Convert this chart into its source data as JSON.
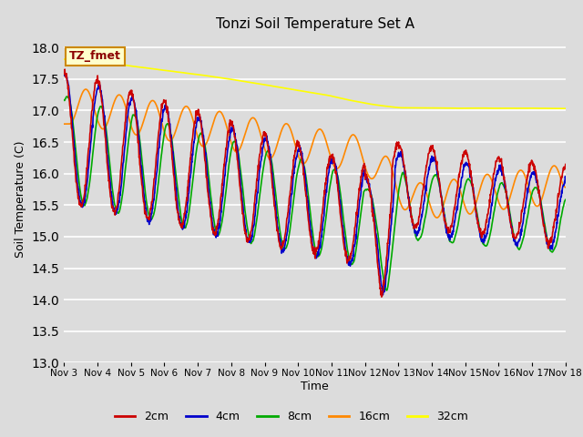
{
  "title": "Tonzi Soil Temperature Set A",
  "xlabel": "Time",
  "ylabel": "Soil Temperature (C)",
  "annotation": "TZ_fmet",
  "ylim": [
    13.0,
    18.2
  ],
  "yticks": [
    13.0,
    13.5,
    14.0,
    14.5,
    15.0,
    15.5,
    16.0,
    16.5,
    17.0,
    17.5,
    18.0
  ],
  "xtick_labels": [
    "Nov 3",
    "Nov 4",
    "Nov 5",
    "Nov 6",
    "Nov 7",
    "Nov 8",
    "Nov 9",
    "Nov 10",
    "Nov 11",
    "Nov 12",
    "Nov 13",
    "Nov 14",
    "Nov 15",
    "Nov 16",
    "Nov 17",
    "Nov 18"
  ],
  "colors": {
    "2cm": "#cc0000",
    "4cm": "#0000cc",
    "8cm": "#00aa00",
    "16cm": "#ff8800",
    "32cm": "#ffff00"
  },
  "legend_labels": [
    "2cm",
    "4cm",
    "8cm",
    "16cm",
    "32cm"
  ],
  "bg_color": "#dcdcdc",
  "grid_color": "#ffffff"
}
